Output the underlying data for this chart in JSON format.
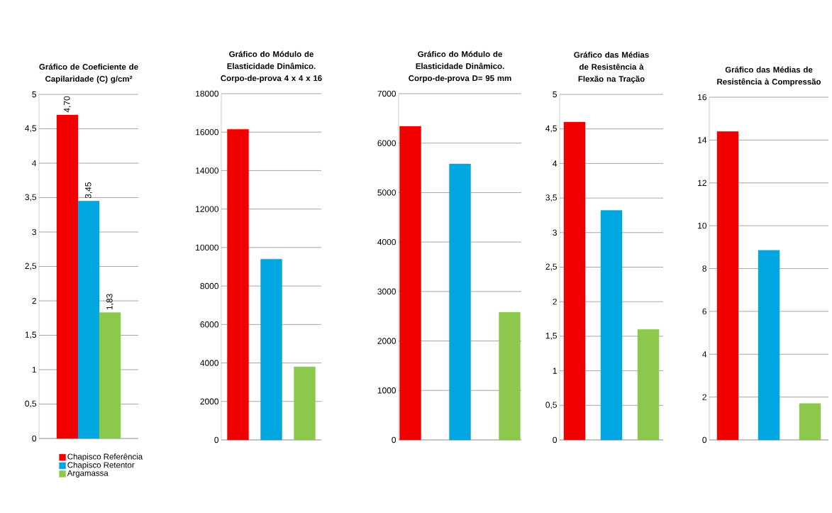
{
  "chart_data": [
    {
      "type": "bar",
      "title": "Gráfico de Coeficiente de Capilaridade (C) g/cm²",
      "categories": [
        null
      ],
      "grid": "y",
      "legend": "bottom",
      "ylim": [
        0,
        5
      ],
      "yticks": [
        0,
        {
          "value": 0.5,
          "label": "0,5"
        },
        1,
        {
          "value": 1.5,
          "label": "1,5"
        },
        2,
        {
          "value": 2.5,
          "label": "2,5"
        },
        3,
        {
          "value": 3.5,
          "label": "3,5"
        },
        4,
        {
          "value": 4.5,
          "label": "4,5"
        },
        5
      ],
      "series": [
        {
          "name": "Chapisco Referência",
          "color": "#f20000",
          "values": [
            4.7
          ],
          "value_labels": [
            "4,70"
          ]
        },
        {
          "name": "Chapisco Retentor",
          "color": "#00a6e0",
          "values": [
            3.45
          ],
          "value_labels": [
            "3,45"
          ]
        },
        {
          "name": "Argamassa",
          "color": "#8cc84b",
          "values": [
            1.83
          ],
          "value_labels": [
            "1,83"
          ]
        }
      ]
    },
    {
      "type": "bar",
      "title": "Gráfico do Módulo de Elasticidade Dinâmico. Corpo-de-prova 4 x 4 x 16",
      "categories": [
        null
      ],
      "grid": "y",
      "ylim": [
        0,
        18000
      ],
      "yticks": [
        0,
        2000,
        4000,
        6000,
        8000,
        10000,
        12000,
        14000,
        16000,
        18000
      ],
      "series": [
        {
          "color": "#f20000",
          "values": [
            16150
          ]
        },
        {
          "color": "#00a6e0",
          "values": [
            9400
          ]
        },
        {
          "color": "#8cc84b",
          "values": [
            3800
          ]
        }
      ]
    },
    {
      "type": "bar",
      "title": "Gráfico do Módulo de Elasticidade Dinâmico. Corpo-de-prova D= 95 mm",
      "categories": [
        null
      ],
      "grid": "y",
      "ylim": [
        0,
        7000
      ],
      "yticks": [
        0,
        1000,
        2000,
        3000,
        4000,
        5000,
        6000,
        7000
      ],
      "series": [
        {
          "color": "#f20000",
          "values": [
            6340
          ]
        },
        {
          "color": "#00a6e0",
          "values": [
            5580
          ]
        },
        {
          "color": "#8cc84b",
          "values": [
            2580
          ]
        }
      ]
    },
    {
      "type": "bar",
      "title": "Gráfico das Médias de Resistência à Flexão na Tração",
      "categories": [
        null
      ],
      "grid": "y",
      "ylim": [
        0,
        5
      ],
      "yticks": [
        0,
        {
          "value": 0.5,
          "label": "0,5"
        },
        1,
        {
          "value": 1.5,
          "label": "1,5"
        },
        2,
        {
          "value": 2.5,
          "label": "2,5"
        },
        3,
        {
          "value": 3.5,
          "label": "3,5"
        },
        4,
        {
          "value": 4.5,
          "label": "4,5"
        },
        5
      ],
      "series": [
        {
          "color": "#f20000",
          "values": [
            4.6
          ]
        },
        {
          "color": "#00a6e0",
          "values": [
            3.32
          ]
        },
        {
          "color": "#8cc84b",
          "values": [
            1.6
          ]
        }
      ]
    },
    {
      "type": "bar",
      "title": "Gráfico das Médias de Resistência à Compressão",
      "categories": [
        null
      ],
      "grid": "y",
      "ylim": [
        0,
        16
      ],
      "yticks": [
        0,
        2,
        4,
        6,
        8,
        10,
        12,
        14,
        16
      ],
      "series": [
        {
          "color": "#f20000",
          "values": [
            14.4
          ]
        },
        {
          "color": "#00a6e0",
          "values": [
            8.85
          ]
        },
        {
          "color": "#8cc84b",
          "values": [
            1.7
          ]
        }
      ]
    }
  ]
}
